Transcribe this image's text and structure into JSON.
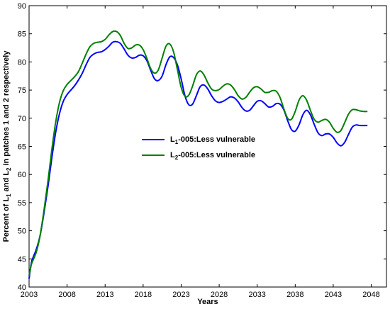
{
  "chart_data": {
    "type": "line",
    "title": "",
    "xlabel": "Years",
    "ylabel": {
      "parts": [
        "Percent of L",
        "1",
        " and L",
        "2",
        " in patches 1 and 2 respectively"
      ]
    },
    "xlim": [
      2003,
      2050
    ],
    "ylim": [
      40,
      90
    ],
    "xticks": [
      2003,
      2008,
      2013,
      2018,
      2023,
      2028,
      2033,
      2038,
      2043,
      2048
    ],
    "yticks": [
      40,
      45,
      50,
      55,
      60,
      65,
      70,
      75,
      80,
      85,
      90
    ],
    "grid": false,
    "legend_position": "center",
    "series": [
      {
        "color": "#0000ff",
        "legend_parts": [
          "L",
          "1",
          "-005:Less    vulnerable"
        ],
        "points": [
          [
            2003,
            41.5
          ],
          [
            2003.3,
            44.3
          ],
          [
            2003.6,
            45.5
          ],
          [
            2003.9,
            46.5
          ],
          [
            2004.2,
            47.8
          ],
          [
            2004.5,
            49.5
          ],
          [
            2005,
            53.5
          ],
          [
            2005.5,
            58
          ],
          [
            2006,
            63
          ],
          [
            2006.5,
            67.5
          ],
          [
            2007,
            70.8
          ],
          [
            2007.5,
            73
          ],
          [
            2008,
            74.2
          ],
          [
            2008.5,
            75
          ],
          [
            2009,
            75.8
          ],
          [
            2009.5,
            76.8
          ],
          [
            2010,
            78
          ],
          [
            2010.5,
            79.5
          ],
          [
            2011,
            80.8
          ],
          [
            2011.5,
            81.4
          ],
          [
            2012,
            81.7
          ],
          [
            2012.5,
            81.8
          ],
          [
            2013,
            82.2
          ],
          [
            2013.5,
            82.8
          ],
          [
            2014,
            83.5
          ],
          [
            2014.5,
            83.6
          ],
          [
            2015,
            83.3
          ],
          [
            2015.5,
            82.3
          ],
          [
            2016,
            81.2
          ],
          [
            2016.5,
            80.7
          ],
          [
            2017,
            80.8
          ],
          [
            2017.5,
            81.2
          ],
          [
            2018,
            81.1
          ],
          [
            2018.5,
            80.2
          ],
          [
            2019,
            78.5
          ],
          [
            2019.5,
            77
          ],
          [
            2020,
            76.7
          ],
          [
            2020.5,
            77.5
          ],
          [
            2021,
            79.5
          ],
          [
            2021.5,
            80.9
          ],
          [
            2022,
            80.8
          ],
          [
            2022.5,
            79.5
          ],
          [
            2023,
            77
          ],
          [
            2023.5,
            74
          ],
          [
            2024,
            72.4
          ],
          [
            2024.5,
            72.5
          ],
          [
            2025,
            74
          ],
          [
            2025.5,
            75.6
          ],
          [
            2026,
            75.9
          ],
          [
            2026.5,
            75.2
          ],
          [
            2027,
            74
          ],
          [
            2027.5,
            73.1
          ],
          [
            2028,
            72.8
          ],
          [
            2028.5,
            73
          ],
          [
            2029,
            73.4
          ],
          [
            2029.5,
            73.8
          ],
          [
            2030,
            73.6
          ],
          [
            2030.5,
            72.9
          ],
          [
            2031,
            71.9
          ],
          [
            2031.5,
            71.3
          ],
          [
            2032,
            71.4
          ],
          [
            2032.5,
            72.2
          ],
          [
            2033,
            73
          ],
          [
            2033.5,
            73.1
          ],
          [
            2034,
            72.6
          ],
          [
            2034.5,
            72
          ],
          [
            2035,
            72.1
          ],
          [
            2035.5,
            72.6
          ],
          [
            2036,
            72.5
          ],
          [
            2036.5,
            71.5
          ],
          [
            2037,
            69.6
          ],
          [
            2037.5,
            68
          ],
          [
            2038,
            67.7
          ],
          [
            2038.5,
            68.8
          ],
          [
            2039,
            70.6
          ],
          [
            2039.5,
            71.4
          ],
          [
            2040,
            70.6
          ],
          [
            2040.5,
            68.9
          ],
          [
            2041,
            67.4
          ],
          [
            2041.5,
            66.9
          ],
          [
            2042,
            67.2
          ],
          [
            2042.5,
            67.2
          ],
          [
            2043,
            66.6
          ],
          [
            2043.5,
            65.6
          ],
          [
            2044,
            65.1
          ],
          [
            2044.5,
            65.7
          ],
          [
            2045,
            67.1
          ],
          [
            2045.5,
            68.4
          ],
          [
            2046,
            68.8
          ],
          [
            2046.5,
            68.7
          ],
          [
            2047,
            68.7
          ],
          [
            2047.5,
            68.7
          ]
        ]
      },
      {
        "color": "#008000",
        "legend_parts": [
          "L",
          "2",
          "-005:Less    vulnerable"
        ],
        "points": [
          [
            2003,
            42
          ],
          [
            2003.3,
            44
          ],
          [
            2003.6,
            45
          ],
          [
            2003.9,
            46
          ],
          [
            2004.2,
            47.5
          ],
          [
            2004.5,
            49.5
          ],
          [
            2005,
            54
          ],
          [
            2005.5,
            59
          ],
          [
            2006,
            64.5
          ],
          [
            2006.5,
            69.3
          ],
          [
            2007,
            72.8
          ],
          [
            2007.5,
            74.9
          ],
          [
            2008,
            76
          ],
          [
            2008.5,
            76.7
          ],
          [
            2009,
            77.4
          ],
          [
            2009.5,
            78.3
          ],
          [
            2010,
            79.8
          ],
          [
            2010.5,
            81.4
          ],
          [
            2011,
            82.7
          ],
          [
            2011.5,
            83.3
          ],
          [
            2012,
            83.5
          ],
          [
            2012.5,
            83.6
          ],
          [
            2013,
            84
          ],
          [
            2013.5,
            84.8
          ],
          [
            2014,
            85.4
          ],
          [
            2014.5,
            85.4
          ],
          [
            2015,
            84.7
          ],
          [
            2015.5,
            83.3
          ],
          [
            2016,
            82.4
          ],
          [
            2016.5,
            82.5
          ],
          [
            2017,
            83
          ],
          [
            2017.5,
            83
          ],
          [
            2018,
            82.2
          ],
          [
            2018.5,
            80.6
          ],
          [
            2019,
            78.8
          ],
          [
            2019.5,
            78
          ],
          [
            2020,
            78.6
          ],
          [
            2020.5,
            80.7
          ],
          [
            2021,
            82.8
          ],
          [
            2021.5,
            83.2
          ],
          [
            2022,
            81.8
          ],
          [
            2022.5,
            78.7
          ],
          [
            2023,
            75.5
          ],
          [
            2023.5,
            73.9
          ],
          [
            2024,
            74.1
          ],
          [
            2024.5,
            75.7
          ],
          [
            2025,
            77.7
          ],
          [
            2025.5,
            78.4
          ],
          [
            2026,
            77.7
          ],
          [
            2026.5,
            76.3
          ],
          [
            2027,
            75.2
          ],
          [
            2027.5,
            74.9
          ],
          [
            2028,
            75.1
          ],
          [
            2028.5,
            75.7
          ],
          [
            2029,
            76.1
          ],
          [
            2029.5,
            75.9
          ],
          [
            2030,
            75.1
          ],
          [
            2030.5,
            74
          ],
          [
            2031,
            73.4
          ],
          [
            2031.5,
            73.7
          ],
          [
            2032,
            74.6
          ],
          [
            2032.5,
            75.4
          ],
          [
            2033,
            75.6
          ],
          [
            2033.5,
            75.2
          ],
          [
            2034,
            74.6
          ],
          [
            2034.5,
            74.6
          ],
          [
            2035,
            74.9
          ],
          [
            2035.5,
            74.8
          ],
          [
            2036,
            73.7
          ],
          [
            2036.5,
            71.7
          ],
          [
            2037,
            70
          ],
          [
            2037.5,
            69.8
          ],
          [
            2038,
            71.2
          ],
          [
            2038.5,
            73.2
          ],
          [
            2039,
            74
          ],
          [
            2039.5,
            73.2
          ],
          [
            2040,
            71.4
          ],
          [
            2040.5,
            69.8
          ],
          [
            2041,
            69.3
          ],
          [
            2041.5,
            69.6
          ],
          [
            2042,
            69.8
          ],
          [
            2042.5,
            69.3
          ],
          [
            2043,
            68.2
          ],
          [
            2043.5,
            67.5
          ],
          [
            2044,
            67.8
          ],
          [
            2044.5,
            69.2
          ],
          [
            2045,
            70.7
          ],
          [
            2045.5,
            71.5
          ],
          [
            2046,
            71.5
          ],
          [
            2046.5,
            71.3
          ],
          [
            2047,
            71.2
          ],
          [
            2047.5,
            71.2
          ]
        ]
      }
    ]
  }
}
